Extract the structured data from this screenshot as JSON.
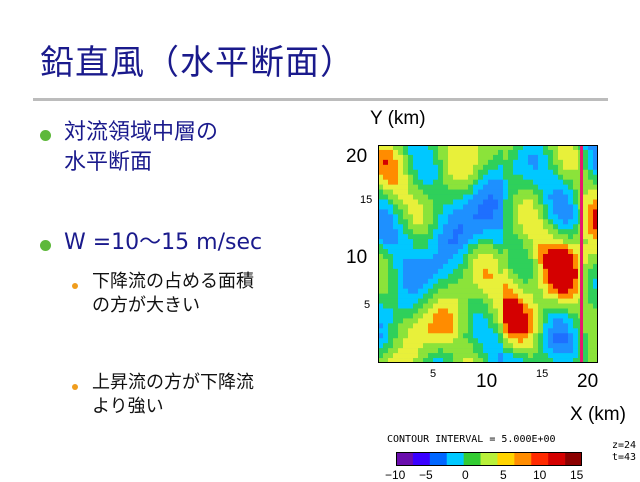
{
  "slide": {
    "title": "鉛直風（水平断面）",
    "bullets": [
      {
        "line1": "対流領域中層の",
        "line2": "水平断面"
      },
      {
        "line1": "W =10～15 m/sec"
      }
    ],
    "sub_bullets": [
      {
        "line1": "下降流の占める面積",
        "line2": "の方が大きい"
      },
      {
        "line1": "上昇流の方が下降流",
        "line2": "より強い"
      }
    ]
  },
  "figure": {
    "y_axis_label": "Y (km)",
    "x_axis_label": "X (km)",
    "y_ticks": {
      "major": [
        "20",
        "10"
      ],
      "minor": [
        "15",
        "5"
      ]
    },
    "x_ticks": {
      "major": [
        "10",
        "20"
      ],
      "minor": [
        "5",
        "15"
      ]
    },
    "contour_text": "CONTOUR INTERVAL = 5.000E+00",
    "z_label": "z=24",
    "t_label": "t=43",
    "colorbar_ticks": [
      "−10",
      "−5",
      "0",
      "5",
      "10",
      "15"
    ],
    "section_line_color": "#e8186d",
    "colorbar_colors": [
      "#6a0dad",
      "#3a00ff",
      "#0066ff",
      "#00c8ff",
      "#33cc33",
      "#b8f03a",
      "#ffd400",
      "#ff8c00",
      "#ff2a00",
      "#d40000",
      "#8b0000"
    ]
  },
  "chart_data": {
    "type": "heatmap",
    "title": "",
    "xlabel": "X (km)",
    "ylabel": "Y (km)",
    "xlim": [
      0,
      20
    ],
    "ylim": [
      0,
      20
    ],
    "colorbar_range": [
      -10,
      15
    ],
    "contour_interval": 5,
    "section_line_x": 18.5
  }
}
